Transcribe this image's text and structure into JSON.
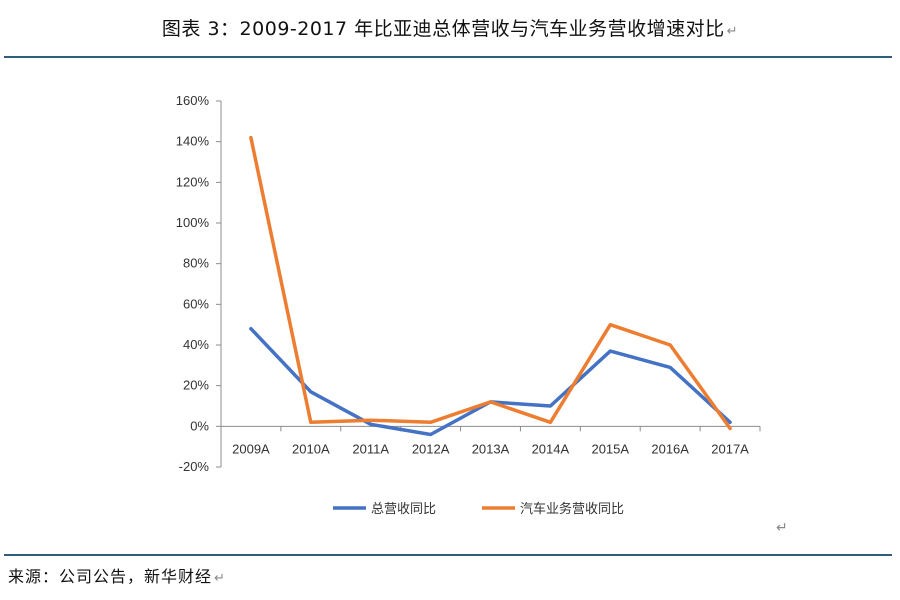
{
  "page": {
    "title": "图表 3：2009-2017 年比亚迪总体营收与汽车业务营收增速对比",
    "return_mark": "↵",
    "source": "来源：公司公告，新华财经"
  },
  "chart_data": {
    "type": "line",
    "title": "2009-2017 年比亚迪总体营收与汽车业务营收增速对比",
    "categories": [
      "2009A",
      "2010A",
      "2011A",
      "2012A",
      "2013A",
      "2014A",
      "2015A",
      "2016A",
      "2017A"
    ],
    "series": [
      {
        "name": "总营收同比",
        "color": "#4472c4",
        "values": [
          48,
          17,
          1,
          -4,
          12,
          10,
          37,
          29,
          2
        ]
      },
      {
        "name": "汽车业务营收同比",
        "color": "#ed7d31",
        "values": [
          142,
          2,
          3,
          2,
          12,
          2,
          50,
          40,
          -1
        ]
      }
    ],
    "ylim": [
      -20,
      160
    ],
    "yticks": [
      -20,
      0,
      20,
      40,
      60,
      80,
      100,
      120,
      140,
      160
    ],
    "ytick_labels": [
      "-20%",
      "0%",
      "20%",
      "40%",
      "60%",
      "80%",
      "100%",
      "120%",
      "140%",
      "160%"
    ],
    "legend_position": "bottom",
    "grid": false
  }
}
